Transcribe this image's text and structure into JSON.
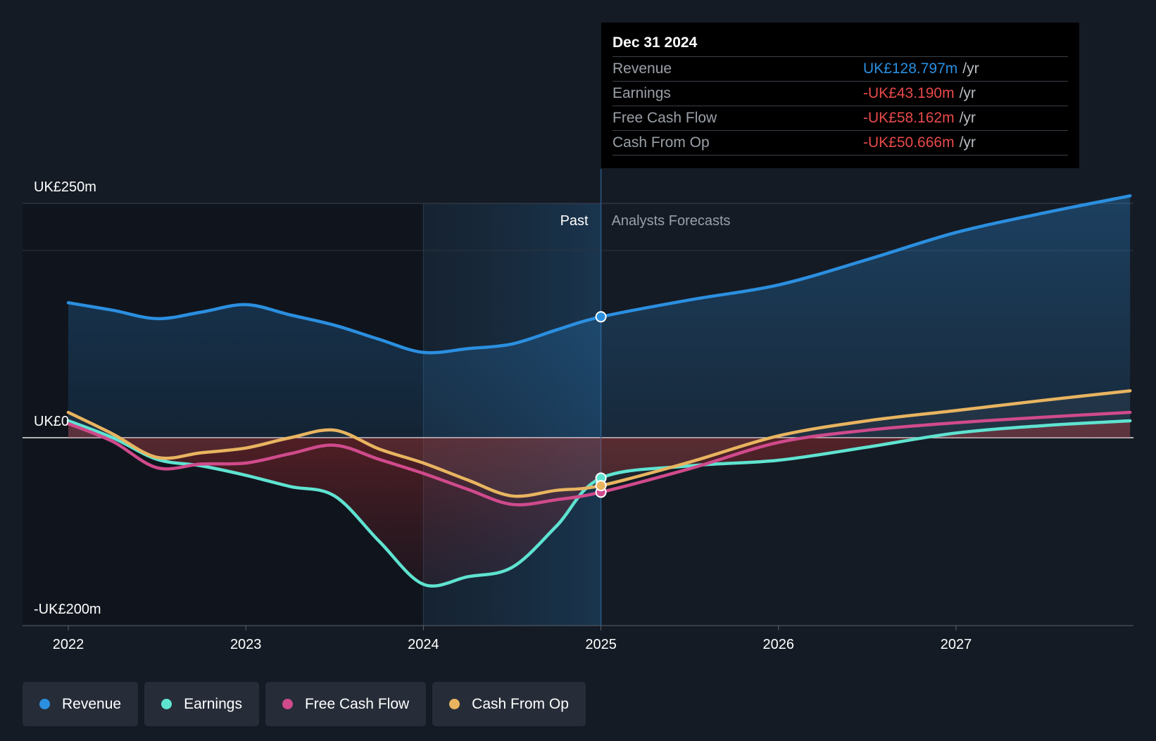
{
  "chart_data": {
    "type": "line",
    "x_ticks": [
      "2022",
      "2023",
      "2024",
      "2025",
      "2026",
      "2027"
    ],
    "y_labels": {
      "top": "UK£250m",
      "zero": "UK£0",
      "bottom": "-UK£200m"
    },
    "ylim": [
      -200,
      250
    ],
    "xlim": [
      2021.75,
      2027.98
    ],
    "divider_x": 2025.0,
    "past_highlight_from": 2024.0,
    "region_labels": {
      "past": "Past",
      "forecast": "Analysts Forecasts"
    },
    "series": [
      {
        "name": "Revenue",
        "color": "#2b8fe0",
        "points": [
          [
            2022.0,
            144
          ],
          [
            2022.25,
            136
          ],
          [
            2022.5,
            127
          ],
          [
            2022.75,
            134
          ],
          [
            2023.0,
            142
          ],
          [
            2023.25,
            131
          ],
          [
            2023.5,
            120
          ],
          [
            2023.75,
            105
          ],
          [
            2024.0,
            91
          ],
          [
            2024.25,
            95
          ],
          [
            2024.5,
            100
          ],
          [
            2024.75,
            115
          ],
          [
            2025.0,
            129
          ],
          [
            2025.5,
            147
          ],
          [
            2026.0,
            163
          ],
          [
            2026.5,
            190
          ],
          [
            2027.0,
            219
          ],
          [
            2027.5,
            240
          ],
          [
            2027.98,
            258
          ]
        ]
      },
      {
        "name": "Earnings",
        "color": "#5fe3d1",
        "points": [
          [
            2022.0,
            18
          ],
          [
            2022.25,
            0
          ],
          [
            2022.5,
            -23
          ],
          [
            2022.75,
            -30
          ],
          [
            2023.0,
            -40
          ],
          [
            2023.25,
            -52
          ],
          [
            2023.5,
            -62
          ],
          [
            2023.75,
            -110
          ],
          [
            2024.0,
            -156
          ],
          [
            2024.25,
            -148
          ],
          [
            2024.5,
            -138
          ],
          [
            2024.75,
            -94
          ],
          [
            2025.0,
            -43
          ],
          [
            2025.5,
            -30
          ],
          [
            2026.0,
            -24
          ],
          [
            2026.5,
            -10
          ],
          [
            2027.0,
            5
          ],
          [
            2027.5,
            13
          ],
          [
            2027.98,
            18
          ]
        ]
      },
      {
        "name": "Free Cash Flow",
        "color": "#d04a8c",
        "points": [
          [
            2022.0,
            15
          ],
          [
            2022.25,
            -4
          ],
          [
            2022.5,
            -32
          ],
          [
            2022.75,
            -28
          ],
          [
            2023.0,
            -27
          ],
          [
            2023.25,
            -17
          ],
          [
            2023.5,
            -8
          ],
          [
            2023.75,
            -23
          ],
          [
            2024.0,
            -38
          ],
          [
            2024.25,
            -55
          ],
          [
            2024.5,
            -71
          ],
          [
            2024.75,
            -66
          ],
          [
            2025.0,
            -58
          ],
          [
            2025.5,
            -33
          ],
          [
            2026.0,
            -5
          ],
          [
            2026.5,
            8
          ],
          [
            2027.0,
            16
          ],
          [
            2027.5,
            22
          ],
          [
            2027.98,
            27
          ]
        ]
      },
      {
        "name": "Cash From Op",
        "color": "#e8b460",
        "points": [
          [
            2022.0,
            27
          ],
          [
            2022.25,
            4
          ],
          [
            2022.5,
            -21
          ],
          [
            2022.75,
            -16
          ],
          [
            2023.0,
            -11
          ],
          [
            2023.25,
            0
          ],
          [
            2023.5,
            8
          ],
          [
            2023.75,
            -12
          ],
          [
            2024.0,
            -27
          ],
          [
            2024.25,
            -45
          ],
          [
            2024.5,
            -62
          ],
          [
            2024.75,
            -56
          ],
          [
            2025.0,
            -51
          ],
          [
            2025.5,
            -26
          ],
          [
            2026.0,
            2
          ],
          [
            2026.5,
            18
          ],
          [
            2027.0,
            29
          ],
          [
            2027.5,
            40
          ],
          [
            2027.98,
            50
          ]
        ]
      }
    ]
  },
  "tooltip": {
    "date": "Dec 31 2024",
    "rows": [
      {
        "label": "Revenue",
        "value": "UK£128.797m",
        "unit": "/yr",
        "color": "#2b8fe0"
      },
      {
        "label": "Earnings",
        "value": "-UK£43.190m",
        "unit": "/yr",
        "color": "#e84a4a"
      },
      {
        "label": "Free Cash Flow",
        "value": "-UK£58.162m",
        "unit": "/yr",
        "color": "#e84a4a"
      },
      {
        "label": "Cash From Op",
        "value": "-UK£50.666m",
        "unit": "/yr",
        "color": "#e84a4a"
      }
    ]
  },
  "legend": [
    {
      "label": "Revenue",
      "color": "#2b8fe0"
    },
    {
      "label": "Earnings",
      "color": "#5fe3d1"
    },
    {
      "label": "Free Cash Flow",
      "color": "#d04a8c"
    },
    {
      "label": "Cash From Op",
      "color": "#e8b460"
    }
  ]
}
